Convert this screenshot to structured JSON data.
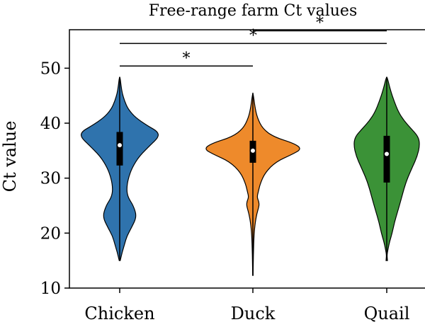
{
  "chart_data": {
    "type": "violin",
    "title": "Free-range farm Ct values",
    "xlabel": "",
    "ylabel": "Ct value",
    "ylim": [
      10,
      57
    ],
    "yticks": [
      10,
      20,
      30,
      40,
      50
    ],
    "grid": false,
    "categories": [
      "Chicken",
      "Duck",
      "Quail"
    ],
    "colors": [
      "#2f73ad",
      "#ee8a2b",
      "#3b9237"
    ],
    "series": [
      {
        "median": 36.0,
        "q1": 32.3,
        "q3": 38.4,
        "min": 15.0,
        "max": 48.4,
        "profile": [
          [
            15.0,
            0.2
          ],
          [
            16.5,
            1.0
          ],
          [
            18.0,
            2.0
          ],
          [
            19.5,
            3.0
          ],
          [
            21.0,
            4.8
          ],
          [
            23.0,
            7.0
          ],
          [
            25.0,
            5.6
          ],
          [
            26.5,
            3.4
          ],
          [
            28.0,
            2.8
          ],
          [
            30.0,
            3.5
          ],
          [
            32.0,
            5.2
          ],
          [
            34.0,
            8.0
          ],
          [
            36.0,
            12.5
          ],
          [
            37.5,
            16.0
          ],
          [
            38.5,
            15.5
          ],
          [
            39.5,
            11.5
          ],
          [
            41.0,
            6.5
          ],
          [
            42.5,
            3.5
          ],
          [
            44.0,
            2.0
          ],
          [
            45.5,
            1.0
          ],
          [
            47.0,
            0.5
          ],
          [
            48.4,
            0.15
          ]
        ]
      },
      {
        "median": 35.0,
        "q1": 32.8,
        "q3": 36.8,
        "min": 12.3,
        "max": 45.5,
        "profile": [
          [
            12.3,
            0.1
          ],
          [
            16.0,
            0.2
          ],
          [
            20.0,
            0.5
          ],
          [
            22.0,
            1.0
          ],
          [
            23.5,
            1.6
          ],
          [
            25.0,
            2.6
          ],
          [
            25.8,
            2.4
          ],
          [
            26.5,
            1.7
          ],
          [
            27.5,
            2.2
          ],
          [
            29.0,
            3.0
          ],
          [
            31.0,
            5.0
          ],
          [
            33.0,
            9.5
          ],
          [
            34.3,
            16.0
          ],
          [
            35.3,
            20.0
          ],
          [
            36.3,
            17.0
          ],
          [
            37.5,
            8.5
          ],
          [
            39.0,
            4.0
          ],
          [
            41.0,
            1.8
          ],
          [
            43.0,
            0.8
          ],
          [
            45.5,
            0.1
          ]
        ]
      },
      {
        "median": 34.4,
        "q1": 29.2,
        "q3": 37.7,
        "min": 15.0,
        "max": 48.4,
        "profile": [
          [
            15.0,
            0.3
          ],
          [
            16.0,
            0.1
          ],
          [
            17.0,
            0.5
          ],
          [
            18.5,
            1.2
          ],
          [
            20.0,
            2.2
          ],
          [
            22.0,
            3.2
          ],
          [
            24.0,
            4.5
          ],
          [
            26.0,
            5.8
          ],
          [
            28.0,
            7.0
          ],
          [
            30.0,
            8.5
          ],
          [
            32.0,
            10.5
          ],
          [
            34.0,
            12.5
          ],
          [
            36.0,
            13.5
          ],
          [
            37.5,
            13.0
          ],
          [
            39.0,
            10.0
          ],
          [
            40.5,
            7.0
          ],
          [
            42.0,
            4.8
          ],
          [
            44.0,
            3.0
          ],
          [
            46.0,
            1.5
          ],
          [
            48.4,
            0.2
          ]
        ]
      }
    ],
    "significance": [
      {
        "pair": [
          0,
          1
        ],
        "y": 50.4,
        "label": "*"
      },
      {
        "pair": [
          0,
          2
        ],
        "y": 54.5,
        "label": "*"
      },
      {
        "pair": [
          1,
          2
        ],
        "y": 56.8,
        "label": "*"
      }
    ]
  }
}
